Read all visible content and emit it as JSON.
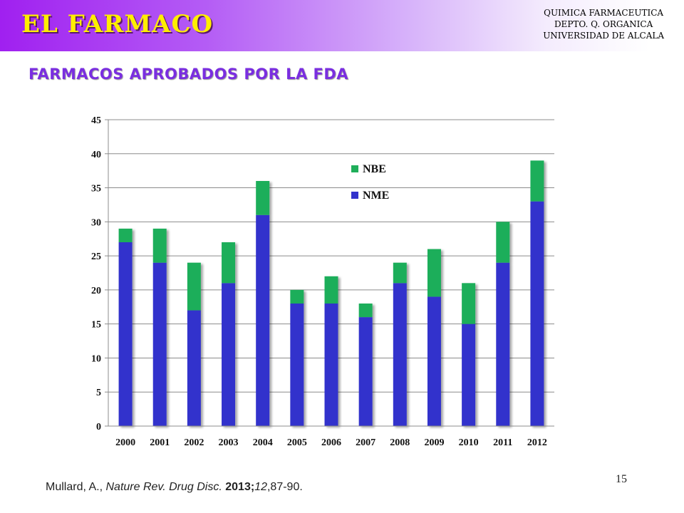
{
  "slide": {
    "title": "EL FARMACO",
    "department": [
      "QUIMICA FARMACEUTICA",
      "DEPTO. Q. ORGANICA",
      "UNIVERSIDAD DE ALCALA"
    ],
    "subtitle": "FARMACOS APROBADOS POR LA FDA",
    "citation": {
      "author": "Mullard, A., ",
      "journal": "Nature Rev. Drug Disc.",
      "year": " 2013;",
      "volume": "12",
      "pages": ",87-90."
    },
    "page_number": "15"
  },
  "colors": {
    "title_text": "#ffee00",
    "subtitle_text": "#7a2ee0",
    "nme": "#3333cc",
    "nbe": "#1fae5a"
  },
  "chart_data": {
    "type": "bar",
    "stacked": true,
    "categories": [
      "2000",
      "2001",
      "2002",
      "2003",
      "2004",
      "2005",
      "2006",
      "2007",
      "2008",
      "2009",
      "2010",
      "2011",
      "2012"
    ],
    "series": [
      {
        "name": "NME",
        "values": [
          27,
          24,
          17,
          21,
          31,
          18,
          18,
          16,
          21,
          19,
          15,
          24,
          33
        ]
      },
      {
        "name": "NBE",
        "values": [
          2,
          5,
          7,
          6,
          5,
          2,
          4,
          2,
          3,
          7,
          6,
          6,
          6
        ]
      }
    ],
    "ylim": [
      0,
      45
    ],
    "yticks": [
      0,
      5,
      10,
      15,
      20,
      25,
      30,
      35,
      40,
      45
    ],
    "grid": true,
    "legend_position": "inside-top-center",
    "legend_order": [
      "NBE",
      "NME"
    ]
  }
}
